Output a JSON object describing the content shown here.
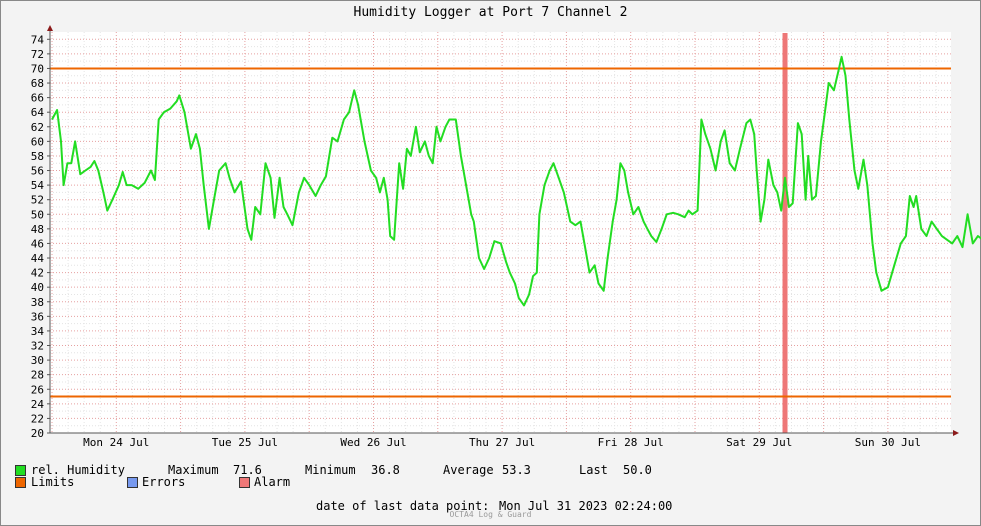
{
  "title": "Humidity Logger at Port 7 Channel 2",
  "chart_data": {
    "type": "line",
    "ylim": [
      20,
      75
    ],
    "yticks": [
      20,
      22,
      24,
      26,
      28,
      30,
      32,
      34,
      36,
      38,
      40,
      42,
      44,
      46,
      48,
      50,
      52,
      54,
      56,
      58,
      60,
      62,
      64,
      66,
      68,
      70,
      72,
      74
    ],
    "xlim": [
      0,
      7.69
    ],
    "day_labels": [
      "Mon 24 Jul",
      "Tue 25 Jul",
      "Wed 26 Jul",
      "Thu 27 Jul",
      "Fri 28 Jul",
      "Sat 29 Jul",
      "Sun 30 Jul"
    ],
    "limits": [
      70,
      25
    ],
    "alarm_x": 5.7,
    "series": [
      {
        "name": "rel. Humidity",
        "color": "#22dd22",
        "points": [
          [
            0,
            63
          ],
          [
            0.04,
            64.3
          ],
          [
            0.07,
            60
          ],
          [
            0.09,
            54
          ],
          [
            0.1,
            55
          ],
          [
            0.12,
            57
          ],
          [
            0.15,
            57
          ],
          [
            0.18,
            60
          ],
          [
            0.22,
            55.5
          ],
          [
            0.26,
            56
          ],
          [
            0.3,
            56.5
          ],
          [
            0.33,
            57.3
          ],
          [
            0.36,
            56
          ],
          [
            0.4,
            53
          ],
          [
            0.43,
            50.5
          ],
          [
            0.47,
            52
          ],
          [
            0.52,
            54
          ],
          [
            0.55,
            55.8
          ],
          [
            0.58,
            54
          ],
          [
            0.62,
            54
          ],
          [
            0.67,
            53.5
          ],
          [
            0.72,
            54.3
          ],
          [
            0.77,
            56
          ],
          [
            0.8,
            54.7
          ],
          [
            0.83,
            63
          ],
          [
            0.87,
            64
          ],
          [
            0.92,
            64.5
          ],
          [
            0.97,
            65.5
          ],
          [
            0.99,
            66.3
          ],
          [
            1.03,
            64
          ],
          [
            1.08,
            59
          ],
          [
            1.12,
            61
          ],
          [
            1.15,
            59
          ],
          [
            1.18,
            54
          ],
          [
            1.22,
            48
          ],
          [
            1.26,
            52
          ],
          [
            1.3,
            56
          ],
          [
            1.35,
            57
          ],
          [
            1.38,
            55
          ],
          [
            1.42,
            53
          ],
          [
            1.47,
            54.5
          ],
          [
            1.52,
            48
          ],
          [
            1.55,
            46.5
          ],
          [
            1.58,
            51
          ],
          [
            1.62,
            50
          ],
          [
            1.66,
            57
          ],
          [
            1.7,
            55
          ],
          [
            1.73,
            49.5
          ],
          [
            1.77,
            55
          ],
          [
            1.8,
            51
          ],
          [
            1.83,
            50
          ],
          [
            1.87,
            48.5
          ],
          [
            1.92,
            53
          ],
          [
            1.96,
            55
          ],
          [
            2.0,
            54
          ],
          [
            2.05,
            52.5
          ],
          [
            2.09,
            54
          ],
          [
            2.13,
            55.2
          ],
          [
            2.18,
            60.5
          ],
          [
            2.22,
            60
          ],
          [
            2.27,
            63
          ],
          [
            2.31,
            64
          ],
          [
            2.35,
            67
          ],
          [
            2.38,
            65
          ],
          [
            2.43,
            60
          ],
          [
            2.48,
            56
          ],
          [
            2.52,
            55
          ],
          [
            2.55,
            53
          ],
          [
            2.58,
            55
          ],
          [
            2.61,
            52
          ],
          [
            2.63,
            47
          ],
          [
            2.66,
            46.5
          ],
          [
            2.7,
            57
          ],
          [
            2.73,
            53.5
          ],
          [
            2.76,
            59
          ],
          [
            2.79,
            58
          ],
          [
            2.83,
            62
          ],
          [
            2.86,
            58.5
          ],
          [
            2.9,
            60
          ],
          [
            2.93,
            58
          ],
          [
            2.96,
            57
          ],
          [
            2.99,
            62
          ],
          [
            3.02,
            60
          ],
          [
            3.06,
            62
          ],
          [
            3.09,
            63
          ],
          [
            3.14,
            63
          ],
          [
            3.18,
            58
          ],
          [
            3.21,
            55
          ],
          [
            3.26,
            50
          ],
          [
            3.28,
            49
          ],
          [
            3.32,
            44
          ],
          [
            3.36,
            42.5
          ],
          [
            3.4,
            44
          ],
          [
            3.44,
            46.3
          ],
          [
            3.49,
            46
          ],
          [
            3.53,
            43.5
          ],
          [
            3.56,
            42
          ],
          [
            3.6,
            40.5
          ],
          [
            3.63,
            38.5
          ],
          [
            3.67,
            37.5
          ],
          [
            3.71,
            39
          ],
          [
            3.74,
            41.5
          ],
          [
            3.77,
            42
          ],
          [
            3.79,
            50
          ],
          [
            3.83,
            54
          ],
          [
            3.87,
            56
          ],
          [
            3.9,
            57
          ],
          [
            3.94,
            55
          ],
          [
            3.98,
            53
          ],
          [
            4.03,
            49
          ],
          [
            4.07,
            48.5
          ],
          [
            4.11,
            49
          ],
          [
            4.15,
            45
          ],
          [
            4.18,
            42
          ],
          [
            4.22,
            43
          ],
          [
            4.25,
            40.5
          ],
          [
            4.29,
            39.5
          ],
          [
            4.32,
            44
          ],
          [
            4.36,
            49
          ],
          [
            4.39,
            52
          ],
          [
            4.42,
            57
          ],
          [
            4.45,
            56
          ],
          [
            4.48,
            53
          ],
          [
            4.52,
            50
          ],
          [
            4.56,
            51
          ],
          [
            4.6,
            49
          ],
          [
            4.63,
            48
          ],
          [
            4.66,
            47
          ],
          [
            4.7,
            46.2
          ],
          [
            4.74,
            48
          ],
          [
            4.78,
            50
          ],
          [
            4.83,
            50.2
          ],
          [
            4.87,
            50
          ],
          [
            4.92,
            49.6
          ],
          [
            4.95,
            50.5
          ],
          [
            4.98,
            50
          ],
          [
            5.02,
            50.5
          ],
          [
            5.05,
            63
          ],
          [
            5.08,
            61
          ],
          [
            5.12,
            59
          ],
          [
            5.16,
            56
          ],
          [
            5.2,
            60
          ],
          [
            5.23,
            61.5
          ],
          [
            5.27,
            57
          ],
          [
            5.31,
            56
          ],
          [
            5.35,
            59
          ],
          [
            5.4,
            62.5
          ],
          [
            5.43,
            63
          ],
          [
            5.46,
            61
          ],
          [
            5.48,
            56
          ],
          [
            5.51,
            49
          ],
          [
            5.54,
            52
          ],
          [
            5.57,
            57.5
          ],
          [
            5.61,
            54
          ],
          [
            5.64,
            53
          ],
          [
            5.67,
            50.5
          ],
          [
            5.7,
            55
          ],
          [
            5.73,
            51
          ],
          [
            5.76,
            51.5
          ],
          [
            5.8,
            62.5
          ],
          [
            5.83,
            61
          ],
          [
            5.86,
            52
          ],
          [
            5.88,
            58
          ],
          [
            5.91,
            52
          ],
          [
            5.94,
            52.5
          ],
          [
            5.98,
            60
          ],
          [
            6.01,
            64
          ],
          [
            6.04,
            68
          ],
          [
            6.08,
            67
          ],
          [
            6.12,
            70
          ],
          [
            6.14,
            71.6
          ],
          [
            6.17,
            69
          ],
          [
            6.2,
            63
          ],
          [
            6.24,
            56
          ],
          [
            6.27,
            53.5
          ],
          [
            6.31,
            57.5
          ],
          [
            6.34,
            54
          ],
          [
            6.38,
            46
          ],
          [
            6.41,
            42
          ],
          [
            6.45,
            39.5
          ],
          [
            6.5,
            40
          ],
          [
            6.55,
            43
          ],
          [
            6.6,
            46
          ],
          [
            6.64,
            47
          ],
          [
            6.67,
            52.5
          ],
          [
            6.7,
            51
          ],
          [
            6.72,
            52.5
          ],
          [
            6.76,
            48
          ],
          [
            6.8,
            47
          ],
          [
            6.84,
            49
          ],
          [
            6.88,
            48
          ],
          [
            6.92,
            47
          ],
          [
            6.96,
            46.5
          ],
          [
            7.0,
            46
          ],
          [
            7.04,
            47
          ],
          [
            7.08,
            45.5
          ],
          [
            7.12,
            50
          ],
          [
            7.16,
            46
          ],
          [
            7.2,
            47
          ],
          [
            7.24,
            46.5
          ],
          [
            7.28,
            48.8
          ],
          [
            7.32,
            47
          ],
          [
            7.36,
            46.5
          ],
          [
            7.4,
            47.5
          ],
          [
            7.44,
            45.5
          ],
          [
            7.48,
            45
          ],
          [
            7.52,
            47.5
          ],
          [
            7.56,
            46
          ],
          [
            7.6,
            46
          ],
          [
            7.63,
            47
          ],
          [
            7.66,
            48.5
          ],
          [
            7.69,
            50
          ]
        ]
      }
    ],
    "stats": {
      "max_label": "Maximum",
      "max": "71.6",
      "min_label": "Minimum",
      "min": "36.8",
      "avg_label": "Average",
      "avg": "53.3",
      "last_label": "Last",
      "last": "50.0"
    }
  },
  "legend": {
    "humidity": "rel. Humidity",
    "limits": "Limits",
    "errors": "Errors",
    "alarm": "Alarm"
  },
  "colors": {
    "humidity": "#22dd22",
    "limits": "#ee6600",
    "errors": "#7799ee",
    "alarm": "#ee7777"
  },
  "footer": {
    "last_point_label": "date of last data point:",
    "last_point_value": "Mon Jul 31 2023 02:24:00",
    "brand": "OCTA4 Log & Guard"
  }
}
